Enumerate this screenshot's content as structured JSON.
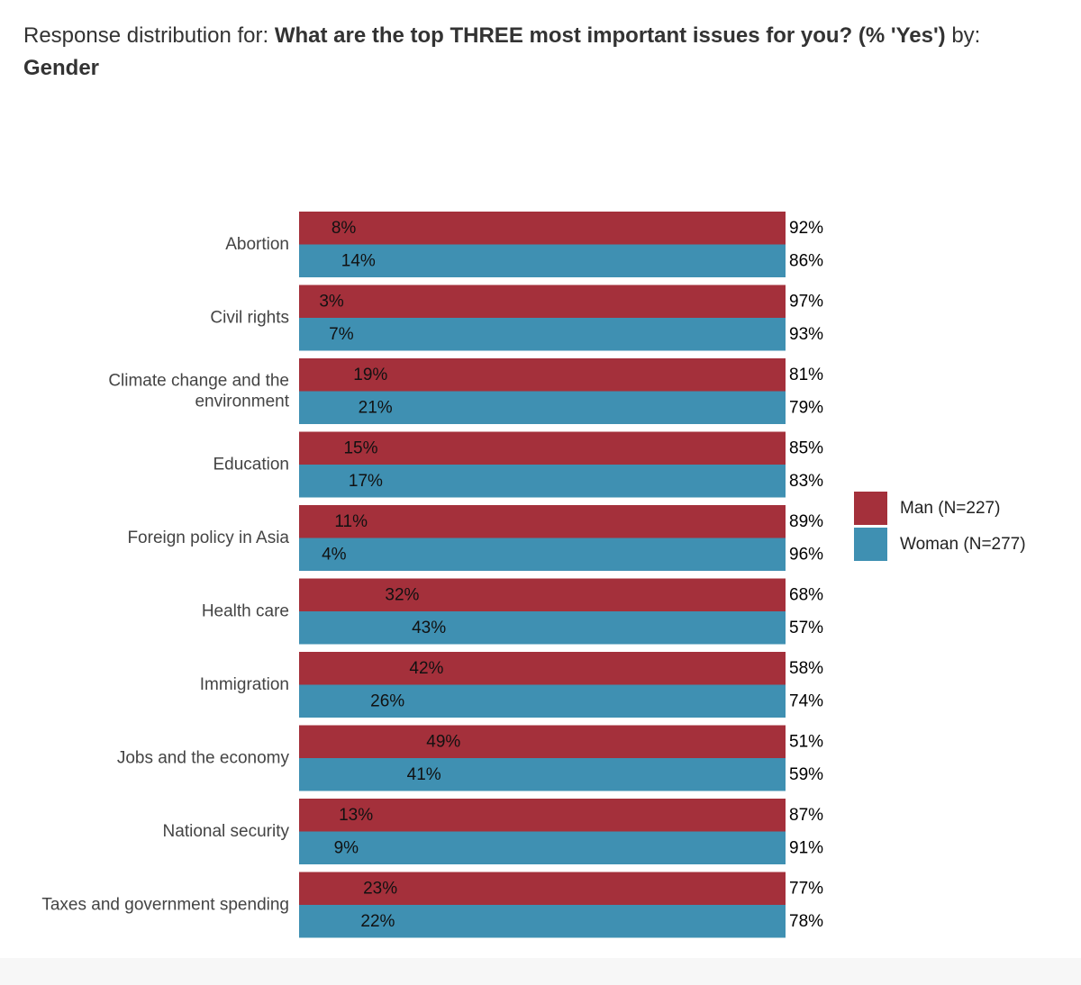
{
  "title": {
    "prefix": "Response distribution for: ",
    "question": "What are the top THREE most important issues for you? (% 'Yes')",
    "by_text": " by: ",
    "group": "Gender"
  },
  "colors": {
    "man": "#a4303b",
    "woman": "#3f90b2"
  },
  "chart_data": {
    "type": "bar",
    "orientation": "horizontal",
    "stacked": true,
    "title": "Response distribution for: What are the top THREE most important issues for you? (% 'Yes') by: Gender",
    "xlim": [
      0,
      100
    ],
    "categories": [
      "Abortion",
      "Civil rights",
      "Climate change and the environment",
      "Education",
      "Foreign policy in Asia",
      "Health care",
      "Immigration",
      "Jobs and the economy",
      "National security",
      "Taxes and government spending"
    ],
    "category_lines": [
      [
        "Abortion"
      ],
      [
        "Civil rights"
      ],
      [
        "Climate change and the",
        "environment"
      ],
      [
        "Education"
      ],
      [
        "Foreign policy in Asia"
      ],
      [
        "Health care"
      ],
      [
        "Immigration"
      ],
      [
        "Jobs and the economy"
      ],
      [
        "National security"
      ],
      [
        "Taxes and government spending"
      ]
    ],
    "series": [
      {
        "name": "Man (N=227)",
        "yes": [
          8,
          3,
          19,
          15,
          11,
          32,
          42,
          49,
          13,
          23
        ],
        "no": [
          92,
          97,
          81,
          85,
          89,
          68,
          58,
          51,
          87,
          77
        ]
      },
      {
        "name": "Woman (N=277)",
        "yes": [
          14,
          7,
          21,
          17,
          4,
          43,
          26,
          41,
          9,
          22
        ],
        "no": [
          86,
          93,
          79,
          83,
          96,
          57,
          74,
          59,
          91,
          78
        ]
      }
    ],
    "legend": [
      "Man (N=227)",
      "Woman (N=277)"
    ],
    "legend_position": "right"
  }
}
